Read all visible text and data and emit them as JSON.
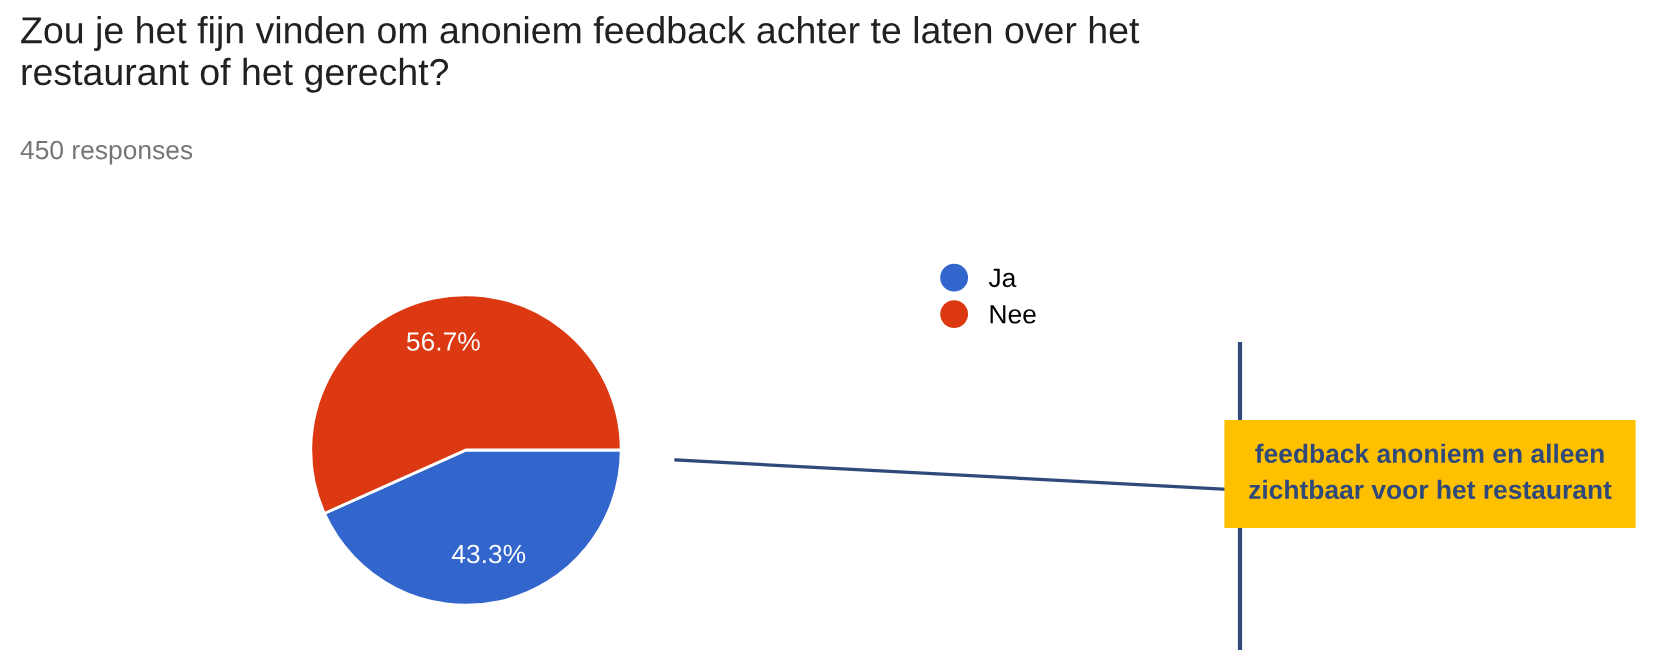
{
  "chart_data": {
    "type": "pie",
    "title": "Zou je het fijn vinden om anoniem feedback achter te laten over het\nrestaurant of het gerecht?",
    "subtitle": "450 responses",
    "categories": [
      "Ja",
      "Nee"
    ],
    "values": [
      43.3,
      56.7
    ],
    "colors": [
      "#3366cc",
      "#dc3912"
    ],
    "value_labels": [
      "43.3%",
      "56.7%"
    ],
    "legend": "top right",
    "annotations": [
      "feedback anoniem en alleen zichtbaar voor het restaurant"
    ]
  }
}
